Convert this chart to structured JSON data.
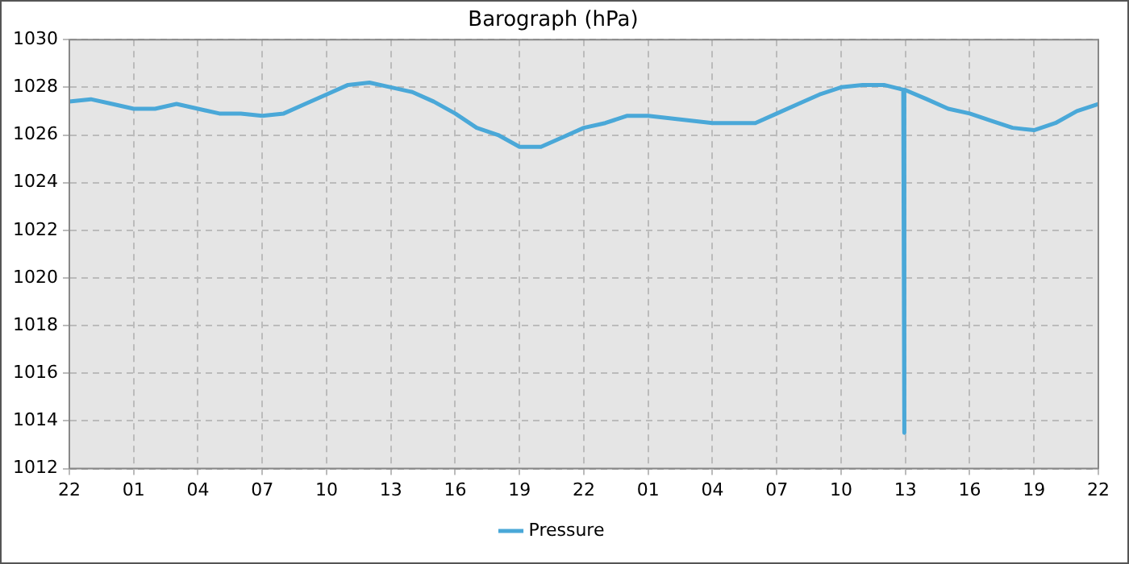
{
  "chart_data": {
    "type": "line",
    "title": "Barograph (hPa)",
    "x": [
      "--01-01T22:00",
      "--01-01T23:00",
      "--01-02T00:00",
      "--01-02T01:00",
      "--01-02T02:00",
      "--01-02T03:00",
      "--01-02T04:00",
      "--01-02T05:00",
      "--01-02T06:00",
      "--01-02T07:00",
      "--01-02T08:00",
      "--01-02T09:00",
      "--01-02T10:00",
      "--01-02T11:00",
      "--01-02T12:00",
      "--01-02T13:00",
      "--01-02T14:00",
      "--01-02T15:00",
      "--01-02T16:00",
      "--01-02T17:00",
      "--01-02T18:00",
      "--01-02T19:00",
      "--01-02T20:00",
      "--01-02T21:00",
      "--01-02T22:00",
      "--01-02T23:00",
      "--01-03T00:00",
      "--01-03T01:00",
      "--01-03T02:00",
      "--01-03T03:00",
      "--01-03T04:00",
      "--01-03T05:00",
      "--01-03T06:00",
      "--01-03T07:00",
      "--01-03T08:00",
      "--01-03T09:00",
      "--01-03T10:00",
      "--01-03T11:00",
      "--01-03T12:00",
      "--01-03T12:54",
      "--01-03T12:56",
      "--01-03T12:58",
      "--01-03T14:00",
      "--01-03T15:00",
      "--01-03T16:00",
      "--01-03T17:00",
      "--01-03T18:00",
      "--01-03T19:00",
      "--01-03T20:00",
      "--01-03T21:00",
      "--01-03T22:00"
    ],
    "series": [
      {
        "name": "Pressure",
        "color": "#4aa8d8",
        "values": [
          1027.4,
          1027.5,
          1027.3,
          1027.1,
          1027.1,
          1027.3,
          1027.1,
          1026.9,
          1026.9,
          1026.8,
          1026.9,
          1027.3,
          1027.7,
          1028.1,
          1028.2,
          1028.0,
          1027.8,
          1027.4,
          1026.9,
          1026.3,
          1026.0,
          1025.5,
          1025.5,
          1025.9,
          1026.3,
          1026.5,
          1026.8,
          1026.8,
          1026.7,
          1026.6,
          1026.5,
          1026.5,
          1026.5,
          1026.9,
          1027.3,
          1027.7,
          1028.0,
          1028.1,
          1028.1,
          1027.9,
          1013.5,
          1027.9,
          1027.5,
          1027.1,
          1026.9,
          1026.6,
          1026.3,
          1026.2,
          1026.5,
          1027.0,
          1027.3
        ]
      }
    ],
    "xlim": [
      "--01-01T22:00",
      "--01-03T22:00"
    ],
    "xticks": [
      {
        "value": "--01-01T22:00",
        "label": "22"
      },
      {
        "value": "--01-02T01:00",
        "label": "01"
      },
      {
        "value": "--01-02T04:00",
        "label": "04"
      },
      {
        "value": "--01-02T07:00",
        "label": "07"
      },
      {
        "value": "--01-02T10:00",
        "label": "10"
      },
      {
        "value": "--01-02T13:00",
        "label": "13"
      },
      {
        "value": "--01-02T16:00",
        "label": "16"
      },
      {
        "value": "--01-02T19:00",
        "label": "19"
      },
      {
        "value": "--01-02T22:00",
        "label": "22"
      },
      {
        "value": "--01-03T01:00",
        "label": "01"
      },
      {
        "value": "--01-03T04:00",
        "label": "04"
      },
      {
        "value": "--01-03T07:00",
        "label": "07"
      },
      {
        "value": "--01-03T10:00",
        "label": "10"
      },
      {
        "value": "--01-03T13:00",
        "label": "13"
      },
      {
        "value": "--01-03T16:00",
        "label": "16"
      },
      {
        "value": "--01-03T19:00",
        "label": "19"
      },
      {
        "value": "--01-03T22:00",
        "label": "22"
      }
    ],
    "ylim": [
      1012,
      1030
    ],
    "yticks": [
      1012,
      1014,
      1016,
      1018,
      1020,
      1022,
      1024,
      1026,
      1028,
      1030
    ],
    "grid": true,
    "legend": "bottom",
    "marker": "none",
    "line_style": "solid"
  }
}
